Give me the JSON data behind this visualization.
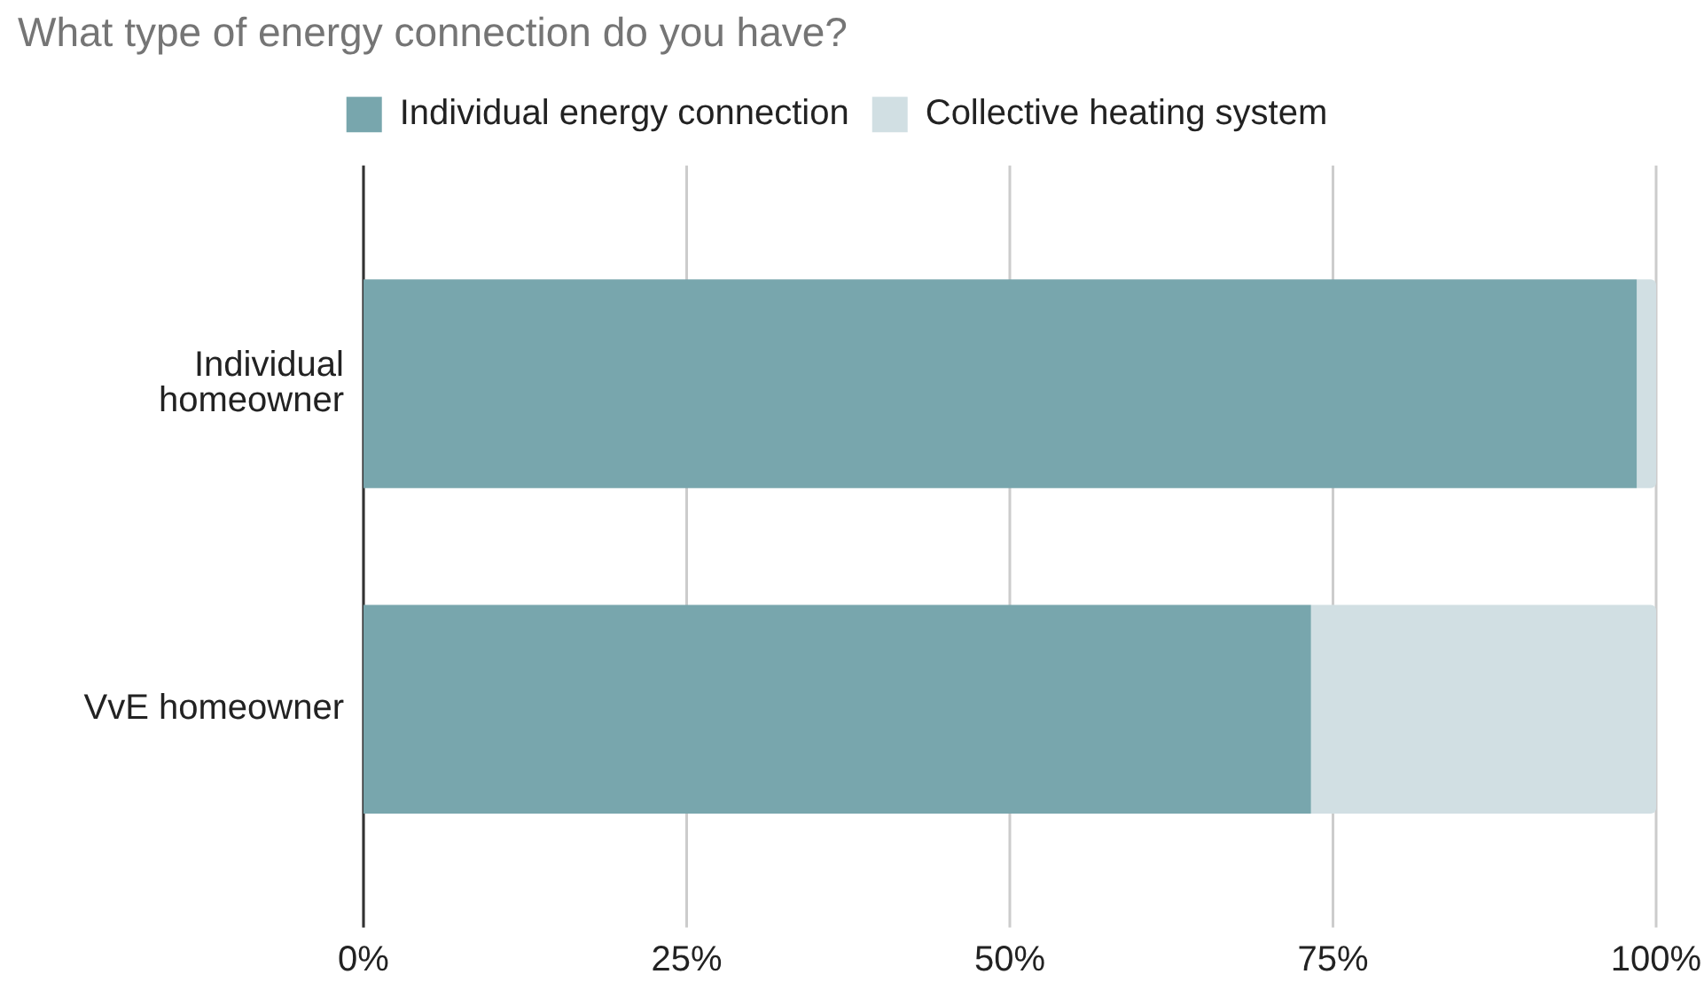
{
  "chart_data": {
    "type": "bar",
    "orientation": "horizontal",
    "stacked": true,
    "title": "What type of energy connection do you have?",
    "categories": [
      "Individual homeowner",
      "VvE homeowner"
    ],
    "series": [
      {
        "name": "Individual energy connection",
        "color": "#78a6ad",
        "values": [
          98.5,
          73.3
        ]
      },
      {
        "name": "Collective heating system",
        "color": "#d1dfe3",
        "values": [
          1.5,
          26.7
        ]
      }
    ],
    "xlim": [
      0,
      100
    ],
    "xticks": [
      {
        "value": 0,
        "label": "0%"
      },
      {
        "value": 25,
        "label": "25%"
      },
      {
        "value": 50,
        "label": "50%"
      },
      {
        "value": 75,
        "label": "75%"
      },
      {
        "value": 100,
        "label": "100%"
      }
    ],
    "grid": "x",
    "legend": "top"
  }
}
